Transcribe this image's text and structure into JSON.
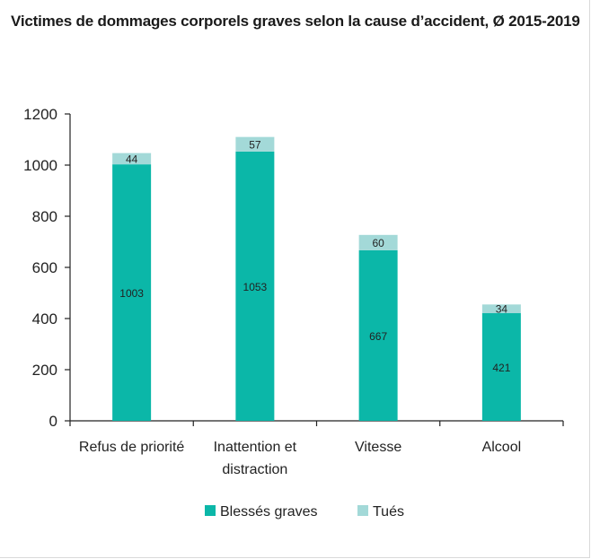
{
  "chart_data": {
    "type": "bar",
    "stacked": true,
    "title": "Victimes de dommages corporels graves selon la cause d’accident, Ø 2015-2019",
    "categories": [
      [
        "Refus de priorité"
      ],
      [
        "Inattention et",
        "distraction"
      ],
      [
        "Vitesse"
      ],
      [
        "Alcool"
      ]
    ],
    "series": [
      {
        "name": "Blessés graves",
        "color": "#0bb7a8",
        "values": [
          1003,
          1053,
          667,
          421
        ]
      },
      {
        "name": "Tués",
        "color": "#a3d9d8",
        "values": [
          44,
          57,
          60,
          34
        ]
      }
    ],
    "ylim": [
      0,
      1200
    ],
    "yticks": [
      0,
      200,
      400,
      600,
      800,
      1000,
      1200
    ],
    "grid": false,
    "legend_position": "bottom"
  }
}
